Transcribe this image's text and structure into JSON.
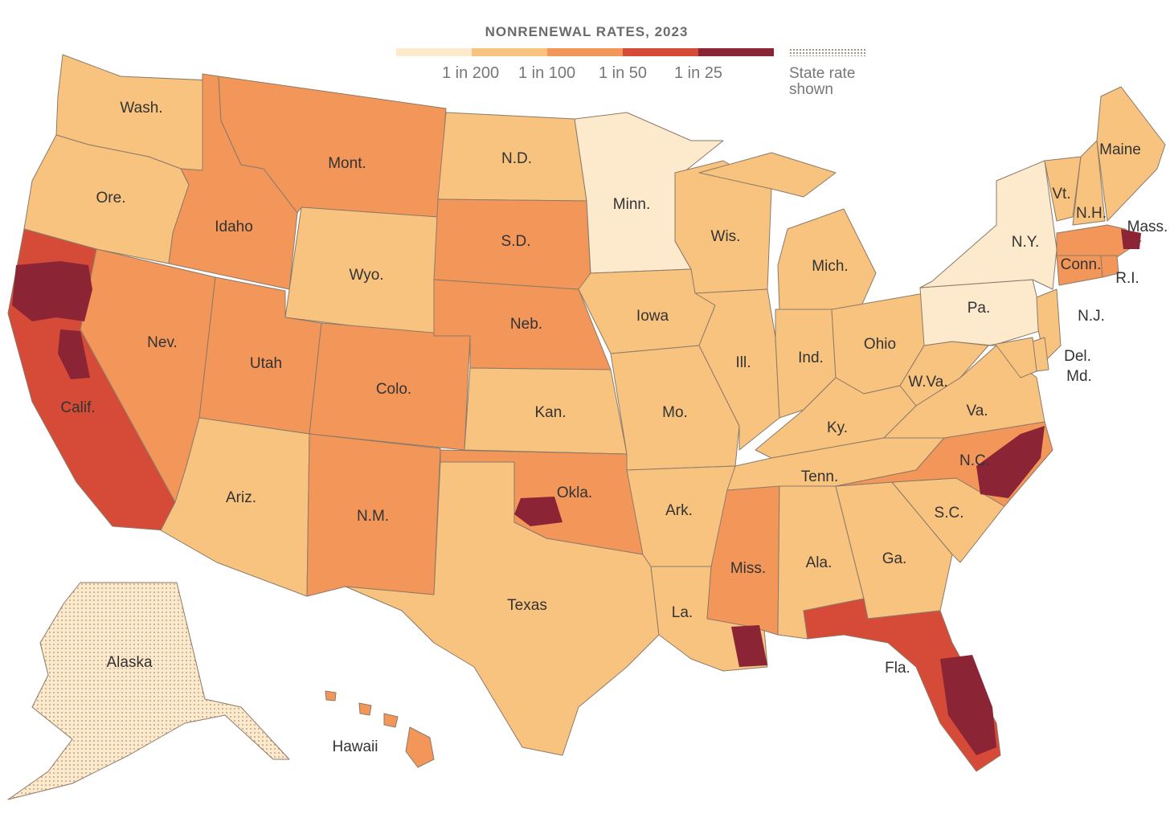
{
  "legend": {
    "title": "NONRENEWAL RATES, 2023",
    "colors": [
      "#fde9cc",
      "#f8c37f",
      "#f2965a",
      "#d64b37",
      "#8b2435"
    ],
    "ticks": [
      "1 in 200",
      "1 in 100",
      "1 in 50",
      "1 in 25"
    ],
    "stipple_label": "State rate shown",
    "stipple_color": "#9a8a78"
  },
  "states": [
    {
      "abbr": "Wash.",
      "bin": 1
    },
    {
      "abbr": "Ore.",
      "bin": 1
    },
    {
      "abbr": "Calif.",
      "bin": 3
    },
    {
      "abbr": "Nev.",
      "bin": 2
    },
    {
      "abbr": "Idaho",
      "bin": 2
    },
    {
      "abbr": "Mont.",
      "bin": 2
    },
    {
      "abbr": "Wyo.",
      "bin": 1
    },
    {
      "abbr": "Utah",
      "bin": 2
    },
    {
      "abbr": "Colo.",
      "bin": 2
    },
    {
      "abbr": "Ariz.",
      "bin": 1
    },
    {
      "abbr": "N.M.",
      "bin": 2
    },
    {
      "abbr": "N.D.",
      "bin": 1
    },
    {
      "abbr": "S.D.",
      "bin": 2
    },
    {
      "abbr": "Neb.",
      "bin": 2
    },
    {
      "abbr": "Kan.",
      "bin": 1
    },
    {
      "abbr": "Okla.",
      "bin": 2
    },
    {
      "abbr": "Texas",
      "bin": 1
    },
    {
      "abbr": "Minn.",
      "bin": 0
    },
    {
      "abbr": "Iowa",
      "bin": 1
    },
    {
      "abbr": "Mo.",
      "bin": 1
    },
    {
      "abbr": "Ark.",
      "bin": 1
    },
    {
      "abbr": "La.",
      "bin": 1
    },
    {
      "abbr": "Wis.",
      "bin": 1
    },
    {
      "abbr": "Ill.",
      "bin": 1
    },
    {
      "abbr": "Mich.",
      "bin": 1
    },
    {
      "abbr": "Ind.",
      "bin": 1
    },
    {
      "abbr": "Ohio",
      "bin": 1
    },
    {
      "abbr": "Ky.",
      "bin": 1
    },
    {
      "abbr": "Tenn.",
      "bin": 1
    },
    {
      "abbr": "Miss.",
      "bin": 2
    },
    {
      "abbr": "Ala.",
      "bin": 1
    },
    {
      "abbr": "Ga.",
      "bin": 1
    },
    {
      "abbr": "Fla.",
      "bin": 3
    },
    {
      "abbr": "S.C.",
      "bin": 1
    },
    {
      "abbr": "N.C.",
      "bin": 2
    },
    {
      "abbr": "Va.",
      "bin": 1
    },
    {
      "abbr": "W.Va.",
      "bin": 1
    },
    {
      "abbr": "Pa.",
      "bin": 0
    },
    {
      "abbr": "N.Y.",
      "bin": 0
    },
    {
      "abbr": "Vt.",
      "bin": 1
    },
    {
      "abbr": "N.H.",
      "bin": 1
    },
    {
      "abbr": "Maine",
      "bin": 1
    },
    {
      "abbr": "Mass.",
      "bin": 2
    },
    {
      "abbr": "Conn.",
      "bin": 2
    },
    {
      "abbr": "R.I.",
      "bin": 2
    },
    {
      "abbr": "N.J.",
      "bin": 1
    },
    {
      "abbr": "Del.",
      "bin": 1
    },
    {
      "abbr": "Md.",
      "bin": 1
    },
    {
      "abbr": "Alaska",
      "bin": 0
    },
    {
      "abbr": "Hawaii",
      "bin": 2
    }
  ]
}
